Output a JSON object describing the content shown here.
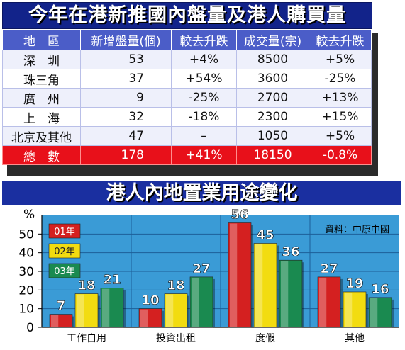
{
  "table": {
    "title": "今年在港新推國內盤量及港人購買量",
    "headers": [
      "地　區",
      "新增盤量(個)",
      "較去升跌",
      "成交量(宗)",
      "較去升跌"
    ],
    "rows": [
      [
        "深　圳",
        "53",
        "+4%",
        "8500",
        "+5%"
      ],
      [
        "珠三角",
        "37",
        "+54%",
        "3600",
        "-25%"
      ],
      [
        "廣　州",
        "9",
        "-25%",
        "2700",
        "+13%"
      ],
      [
        "上　海",
        "32",
        "-18%",
        "2300",
        "+15%"
      ],
      [
        "北京及其他",
        "47",
        "–",
        "1050",
        "+5%"
      ]
    ],
    "total": [
      "總　數",
      "178",
      "+41%",
      "18150",
      "-0.8%"
    ]
  },
  "chart_title": "港人內地置業用途變化",
  "chart_data": {
    "type": "bar",
    "title": "港人內地置業用途變化",
    "categories": [
      "工作自用",
      "投資出租",
      "度假",
      "其他"
    ],
    "series": [
      {
        "name": "01年",
        "values": [
          7,
          10,
          56,
          27
        ],
        "color": "#d42020"
      },
      {
        "name": "02年",
        "values": [
          18,
          18,
          45,
          19
        ],
        "color": "#f2dc10"
      },
      {
        "name": "03年",
        "values": [
          21,
          27,
          36,
          16
        ],
        "color": "#1a8a50"
      }
    ],
    "ylabel": "%",
    "ylim": [
      0,
      60
    ],
    "yticks": [
      0,
      10,
      20,
      30,
      40,
      50
    ],
    "grid": true,
    "legend": "top-left",
    "source": "資料：中原中國",
    "background": "#3a9bd6",
    "value_color": "#ffffff"
  }
}
